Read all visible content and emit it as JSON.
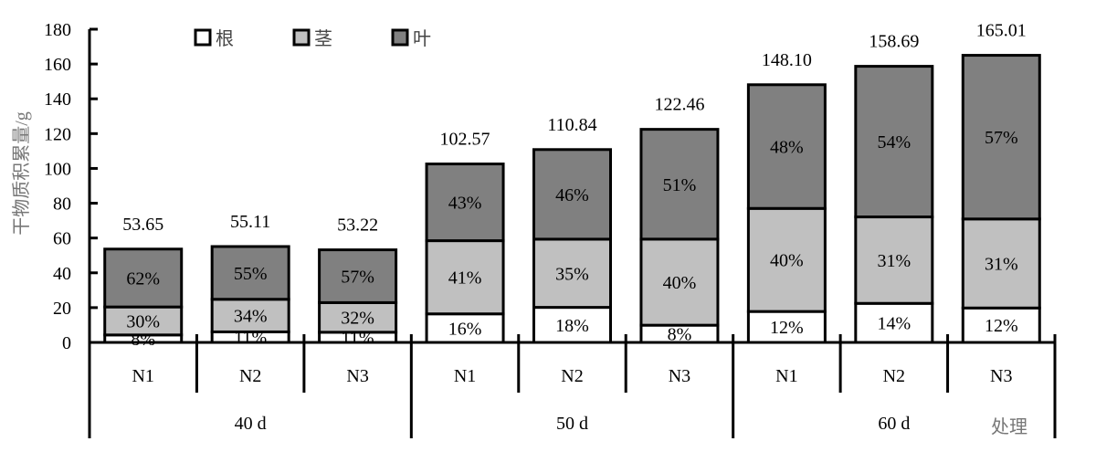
{
  "chart_data": {
    "type": "bar",
    "stacked": true,
    "title": "",
    "ylabel": "干物质积累量/g",
    "xlabel": "处理",
    "ylim": [
      0,
      180
    ],
    "yticks": [
      0,
      20,
      40,
      60,
      80,
      100,
      120,
      140,
      160,
      180
    ],
    "grid": false,
    "legend_position": "top",
    "groups": [
      {
        "label": "40 d",
        "categories": [
          "N1",
          "N2",
          "N3"
        ]
      },
      {
        "label": "50 d",
        "categories": [
          "N1",
          "N2",
          "N3"
        ]
      },
      {
        "label": "60 d",
        "categories": [
          "N1",
          "N2",
          "N3"
        ]
      }
    ],
    "totals": [
      53.65,
      55.11,
      53.22,
      102.57,
      110.84,
      122.46,
      148.1,
      158.69,
      165.01
    ],
    "total_labels": [
      "53.65",
      "55.11",
      "53.22",
      "102.57",
      "110.84",
      "122.46",
      "148.10",
      "158.69",
      "165.01"
    ],
    "series": [
      {
        "name": "根",
        "color": "#ffffff",
        "percent": [
          8,
          11,
          11,
          16,
          18,
          8,
          12,
          14,
          12
        ]
      },
      {
        "name": "茎",
        "color": "#c0c0c0",
        "percent": [
          30,
          34,
          32,
          41,
          35,
          40,
          40,
          31,
          31
        ]
      },
      {
        "name": "叶",
        "color": "#808080",
        "percent": [
          62,
          55,
          57,
          43,
          46,
          51,
          48,
          54,
          57
        ]
      }
    ]
  }
}
